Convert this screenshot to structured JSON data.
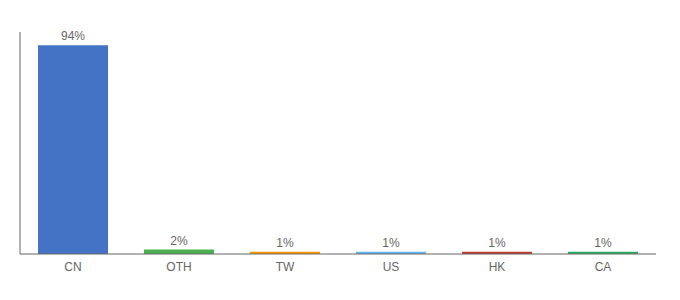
{
  "chart_data": {
    "type": "bar",
    "categories": [
      "CN",
      "OTH",
      "TW",
      "US",
      "HK",
      "CA"
    ],
    "values": [
      94,
      2,
      1,
      1,
      1,
      1
    ],
    "value_labels": [
      "94%",
      "2%",
      "1%",
      "1%",
      "1%",
      "1%"
    ],
    "data_labels": true,
    "colors": [
      "#4472c4",
      "#4caf50",
      "#ff9800",
      "#64b5f6",
      "#c0392b",
      "#27ae60"
    ],
    "ylim": [
      0,
      100
    ],
    "tick_labels": "x",
    "grid": false
  }
}
